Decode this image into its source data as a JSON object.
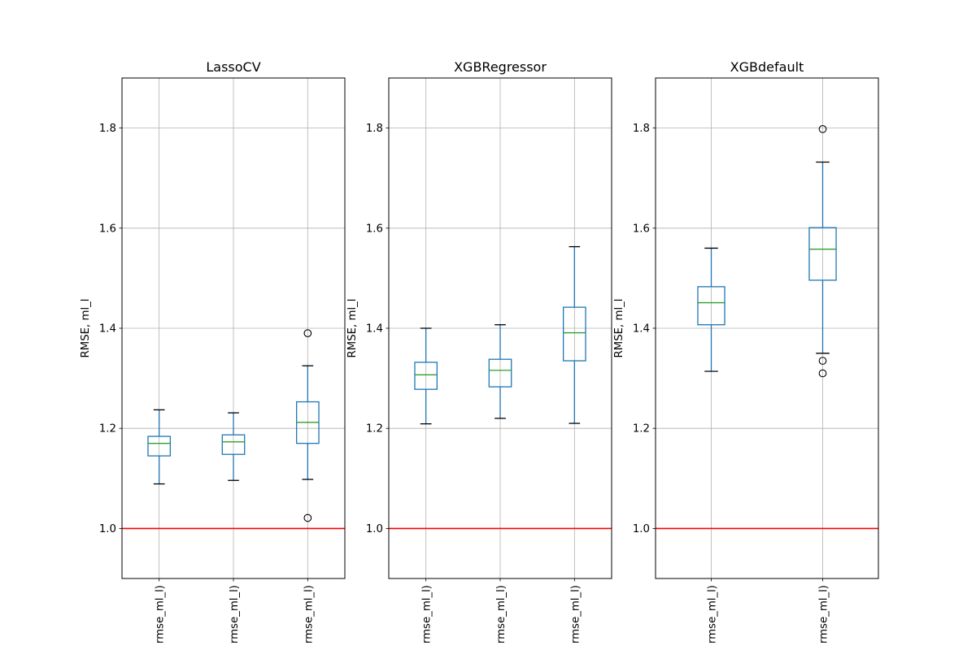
{
  "colors": {
    "box": "#1f77b4",
    "median": "#2ca02c",
    "whisker_cap": "#000000",
    "reference_line": "#ff0000",
    "grid": "#b0b0b0"
  },
  "chart_data": [
    {
      "type": "box",
      "title": "LassoCV",
      "ylabel": "RMSE, ml_l",
      "ylim": [
        0.9,
        1.9
      ],
      "yticks": [
        1.0,
        1.2,
        1.4,
        1.6,
        1.8
      ],
      "ytick_labels": [
        "1.0",
        "1.2",
        "1.4",
        "1.6",
        "1.8"
      ],
      "grid": true,
      "reference_line": 1.0,
      "categories": [
        "rmse_ml_l)",
        "rmse_ml_l)",
        "rmse_ml_l)"
      ],
      "boxes": [
        {
          "whislo": 1.089,
          "q1": 1.145,
          "med": 1.17,
          "q3": 1.184,
          "whishi": 1.237,
          "fliers": []
        },
        {
          "whislo": 1.096,
          "q1": 1.148,
          "med": 1.173,
          "q3": 1.187,
          "whishi": 1.231,
          "fliers": []
        },
        {
          "whislo": 1.098,
          "q1": 1.17,
          "med": 1.212,
          "q3": 1.253,
          "whishi": 1.325,
          "fliers": [
            1.39,
            1.021
          ]
        }
      ]
    },
    {
      "type": "box",
      "title": "XGBRegressor",
      "ylabel": "RMSE, ml_l",
      "ylim": [
        0.9,
        1.9
      ],
      "yticks": [
        1.0,
        1.2,
        1.4,
        1.6,
        1.8
      ],
      "ytick_labels": [
        "1.0",
        "1.2",
        "1.4",
        "1.6",
        "1.8"
      ],
      "grid": true,
      "reference_line": 1.0,
      "categories": [
        "rmse_ml_l)",
        "rmse_ml_l)",
        "rmse_ml_l)"
      ],
      "boxes": [
        {
          "whislo": 1.209,
          "q1": 1.278,
          "med": 1.307,
          "q3": 1.332,
          "whishi": 1.4,
          "fliers": []
        },
        {
          "whislo": 1.22,
          "q1": 1.283,
          "med": 1.316,
          "q3": 1.338,
          "whishi": 1.407,
          "fliers": []
        },
        {
          "whislo": 1.21,
          "q1": 1.335,
          "med": 1.391,
          "q3": 1.442,
          "whishi": 1.563,
          "fliers": []
        }
      ]
    },
    {
      "type": "box",
      "title": "XGBdefault",
      "ylabel": "RMSE, ml_l",
      "ylim": [
        0.9,
        1.9
      ],
      "yticks": [
        1.0,
        1.2,
        1.4,
        1.6,
        1.8
      ],
      "ytick_labels": [
        "1.0",
        "1.2",
        "1.4",
        "1.6",
        "1.8"
      ],
      "grid": true,
      "reference_line": 1.0,
      "categories": [
        "rmse_ml_l)",
        "rmse_ml_l)"
      ],
      "boxes": [
        {
          "whislo": 1.314,
          "q1": 1.407,
          "med": 1.451,
          "q3": 1.483,
          "whishi": 1.56,
          "fliers": []
        },
        {
          "whislo": 1.35,
          "q1": 1.496,
          "med": 1.558,
          "q3": 1.601,
          "whishi": 1.732,
          "fliers": [
            1.798,
            1.335,
            1.31
          ]
        }
      ]
    }
  ]
}
